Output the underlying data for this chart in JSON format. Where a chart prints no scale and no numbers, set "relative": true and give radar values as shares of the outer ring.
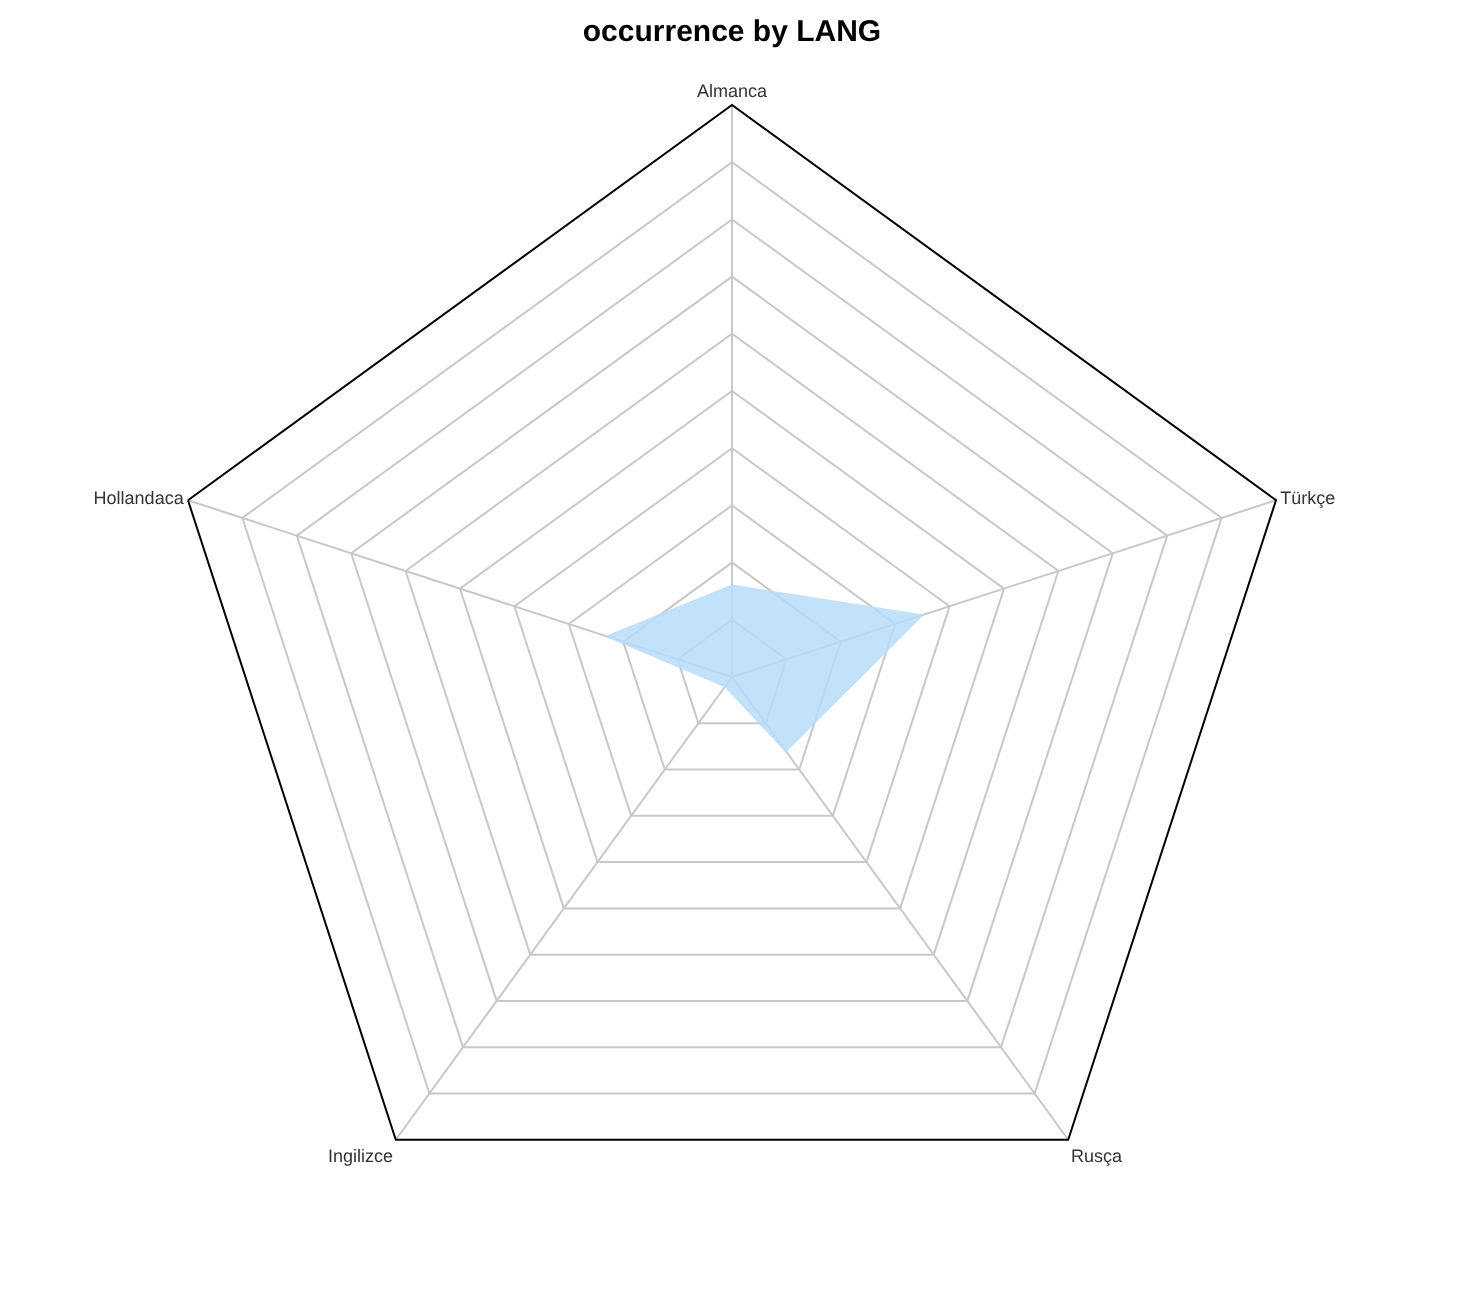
{
  "chart_data": {
    "type": "radar",
    "title": "occurrence by LANG",
    "relative": true,
    "categories": [
      "Almanca",
      "Türkçe",
      "Rusça",
      "Ingilizce",
      "Hollandaca"
    ],
    "series": [
      {
        "color": "#b8dcfa",
        "values": [
          0.16,
          0.35,
          0.16,
          0.02,
          0.23
        ]
      }
    ]
  }
}
